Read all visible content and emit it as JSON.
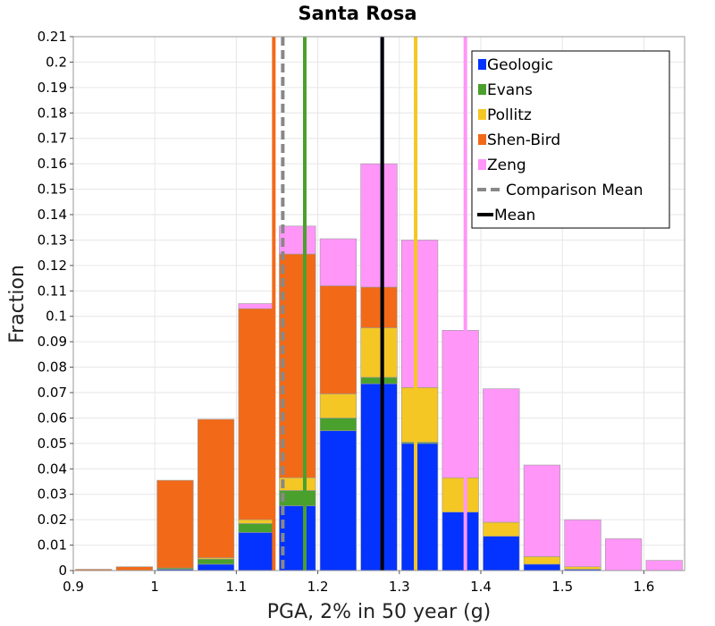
{
  "chart_data": {
    "type": "bar",
    "stacked": true,
    "title": "Santa Rosa",
    "xlabel": "PGA, 2% in 50 year (g)",
    "ylabel": "Fraction",
    "xlim": [
      0.9,
      1.65
    ],
    "ylim": [
      0,
      0.21
    ],
    "bin_width": 0.05,
    "x_ticks": [
      "0.9",
      "1",
      "1.1",
      "1.2",
      "1.3",
      "1.4",
      "1.5",
      "1.6"
    ],
    "x_tick_values": [
      0.9,
      1.0,
      1.1,
      1.2,
      1.3,
      1.4,
      1.5,
      1.6
    ],
    "y_ticks": [
      "0",
      "0.01",
      "0.02",
      "0.03",
      "0.04",
      "0.05",
      "0.06",
      "0.07",
      "0.08",
      "0.09",
      "0.1",
      "0.11",
      "0.12",
      "0.13",
      "0.14",
      "0.15",
      "0.16",
      "0.17",
      "0.18",
      "0.19",
      "0.2",
      "0.21"
    ],
    "y_tick_values": [
      0,
      0.01,
      0.02,
      0.03,
      0.04,
      0.05,
      0.06,
      0.07,
      0.08,
      0.09,
      0.1,
      0.11,
      0.12,
      0.13,
      0.14,
      0.15,
      0.16,
      0.17,
      0.18,
      0.19,
      0.2,
      0.21
    ],
    "bin_centers": [
      0.925,
      0.975,
      1.025,
      1.075,
      1.125,
      1.175,
      1.225,
      1.275,
      1.325,
      1.375,
      1.425,
      1.475,
      1.525,
      1.575,
      1.625
    ],
    "series": [
      {
        "name": "Geologic",
        "color": "#0433ff",
        "values": [
          0,
          0,
          0.0005,
          0.0025,
          0.015,
          0.0255,
          0.055,
          0.0735,
          0.05,
          0.023,
          0.0135,
          0.0025,
          0.0005,
          0,
          0
        ]
      },
      {
        "name": "Evans",
        "color": "#4aa02c",
        "values": [
          0,
          0,
          0.0005,
          0.002,
          0.0035,
          0.006,
          0.005,
          0.0025,
          0.0005,
          0,
          0,
          0,
          0,
          0,
          0
        ]
      },
      {
        "name": "Pollitz",
        "color": "#f4c724",
        "values": [
          0,
          0,
          0,
          0.0005,
          0.0015,
          0.005,
          0.0095,
          0.0195,
          0.0215,
          0.0135,
          0.0055,
          0.003,
          0.001,
          0,
          0
        ]
      },
      {
        "name": "Shen-Bird",
        "color": "#f26a18",
        "values": [
          0.0005,
          0.0015,
          0.0345,
          0.0545,
          0.083,
          0.088,
          0.0425,
          0.016,
          0,
          0,
          0,
          0,
          0,
          0,
          0
        ]
      },
      {
        "name": "Zeng",
        "color": "#ff96f8",
        "values": [
          0,
          0,
          0,
          0,
          0.002,
          0.011,
          0.0185,
          0.0485,
          0.058,
          0.058,
          0.0525,
          0.036,
          0.0185,
          0.0125,
          0.004
        ]
      }
    ],
    "vertical_lines": [
      {
        "name": "Shen-Bird mean",
        "x": 1.146,
        "color": "#f26a18",
        "style": "solid"
      },
      {
        "name": "Comparison Mean",
        "x": 1.157,
        "color": "#888888",
        "style": "dashed"
      },
      {
        "name": "Evans mean",
        "x": 1.184,
        "color": "#4aa02c",
        "style": "solid"
      },
      {
        "name": "Geologic mean",
        "x": 1.279,
        "color": "#0433ff",
        "style": "solid"
      },
      {
        "name": "Mean",
        "x": 1.279,
        "color": "#000000",
        "style": "solid"
      },
      {
        "name": "Pollitz mean",
        "x": 1.32,
        "color": "#f4c724",
        "style": "solid"
      },
      {
        "name": "Zeng mean",
        "x": 1.381,
        "color": "#ff96f8",
        "style": "solid"
      }
    ],
    "legend": {
      "position": "top-right",
      "entries": [
        {
          "label": "Geologic",
          "color": "#0433ff",
          "kind": "box"
        },
        {
          "label": "Evans",
          "color": "#4aa02c",
          "kind": "box"
        },
        {
          "label": "Pollitz",
          "color": "#f4c724",
          "kind": "box"
        },
        {
          "label": "Shen-Bird",
          "color": "#f26a18",
          "kind": "box"
        },
        {
          "label": "Zeng",
          "color": "#ff96f8",
          "kind": "box"
        },
        {
          "label": "Comparison Mean",
          "color": "#888888",
          "kind": "dashed-line"
        },
        {
          "label": "Mean",
          "color": "#000000",
          "kind": "line"
        }
      ]
    },
    "grid": true
  }
}
